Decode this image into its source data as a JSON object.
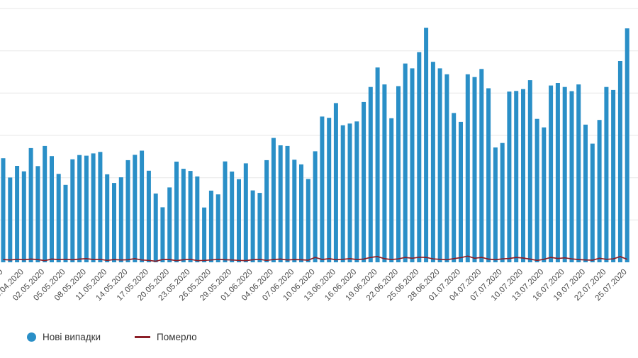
{
  "chart_data": {
    "type": "bar",
    "title": "",
    "xlabel": "",
    "ylabel": "",
    "ylim": [
      0,
      1200
    ],
    "grid_step": 200,
    "grid_on": true,
    "grid_color": "#e7e7e7",
    "tick_every": 3,
    "label_color": "#4a4a4a",
    "legend_position": "bottom-left",
    "x": [
      "26.04.2020",
      "27.04.2020",
      "28.04.2020",
      "29.04.2020",
      "30.04.2020",
      "01.05.2020",
      "02.05.2020",
      "03.05.2020",
      "04.05.2020",
      "05.05.2020",
      "06.05.2020",
      "07.05.2020",
      "08.05.2020",
      "09.05.2020",
      "10.05.2020",
      "11.05.2020",
      "12.05.2020",
      "13.05.2020",
      "14.05.2020",
      "15.05.2020",
      "16.05.2020",
      "17.05.2020",
      "18.05.2020",
      "19.05.2020",
      "20.05.2020",
      "21.05.2020",
      "22.05.2020",
      "23.05.2020",
      "24.05.2020",
      "25.05.2020",
      "26.05.2020",
      "27.05.2020",
      "28.05.2020",
      "29.05.2020",
      "30.05.2020",
      "31.05.2020",
      "01.06.2020",
      "02.06.2020",
      "03.06.2020",
      "04.06.2020",
      "05.06.2020",
      "06.06.2020",
      "07.06.2020",
      "08.06.2020",
      "09.06.2020",
      "10.06.2020",
      "11.06.2020",
      "12.06.2020",
      "13.06.2020",
      "14.06.2020",
      "15.06.2020",
      "16.06.2020",
      "17.06.2020",
      "18.06.2020",
      "19.06.2020",
      "20.06.2020",
      "21.06.2020",
      "22.06.2020",
      "23.06.2020",
      "24.06.2020",
      "25.06.2020",
      "26.06.2020",
      "27.06.2020",
      "28.06.2020",
      "29.06.2020",
      "30.06.2020",
      "01.07.2020",
      "02.07.2020",
      "03.07.2020",
      "04.07.2020",
      "05.07.2020",
      "06.07.2020",
      "07.07.2020",
      "08.07.2020",
      "09.07.2020",
      "10.07.2020",
      "11.07.2020",
      "12.07.2020",
      "13.07.2020",
      "14.07.2020",
      "15.07.2020",
      "16.07.2020",
      "17.07.2020",
      "18.07.2020",
      "19.07.2020",
      "20.07.2020",
      "21.07.2020",
      "22.07.2020",
      "23.07.2020",
      "24.07.2020",
      "25.07.2020"
    ],
    "series": [
      {
        "name": "Нові випадки",
        "type": "bar",
        "color": "#2a8fc7",
        "values": [
          492,
          401,
          456,
          430,
          540,
          455,
          550,
          502,
          418,
          366,
          487,
          507,
          504,
          515,
          522,
          416,
          375,
          402,
          483,
          508,
          528,
          433,
          325,
          260,
          354,
          476,
          442,
          432,
          406,
          259,
          339,
          321,
          477,
          429,
          393,
          468,
          340,
          328,
          483,
          588,
          553,
          550,
          485,
          463,
          394,
          525,
          689,
          683,
          753,
          648,
          656,
          666,
          758,
          829,
          921,
          841,
          681,
          833,
          940,
          917,
          994,
          1109,
          948,
          917,
          889,
          706,
          664,
          889,
          876,
          914,
          823,
          543,
          564,
          807,
          810,
          819,
          861,
          678,
          638,
          836,
          848,
          829,
          809,
          841,
          651,
          561,
          673,
          829,
          815,
          952,
          1106
        ]
      },
      {
        "name": "Померло",
        "type": "line",
        "color": "#8c1f28",
        "values": [
          13,
          11,
          14,
          12,
          15,
          13,
          8,
          15,
          13,
          14,
          12,
          15,
          17,
          13,
          14,
          9,
          13,
          11,
          12,
          17,
          11,
          9,
          5,
          13,
          13,
          8,
          12,
          14,
          8,
          9,
          11,
          14,
          12,
          11,
          9,
          8,
          12,
          14,
          9,
          13,
          15,
          11,
          13,
          12,
          10,
          23,
          13,
          17,
          12,
          14,
          17,
          13,
          15,
          23,
          27,
          17,
          13,
          16,
          23,
          19,
          24,
          23,
          16,
          14,
          12,
          17,
          22,
          29,
          19,
          23,
          15,
          12,
          16,
          18,
          23,
          20,
          15,
          9,
          14,
          23,
          18,
          21,
          16,
          13,
          11,
          10,
          19,
          14,
          16,
          27,
          14
        ]
      }
    ]
  },
  "legend": {
    "items": [
      {
        "label": "Нові випадки",
        "marker": "circle",
        "color": "#2a8fc7"
      },
      {
        "label": "Померло",
        "marker": "line",
        "color": "#8c1f28"
      }
    ]
  }
}
